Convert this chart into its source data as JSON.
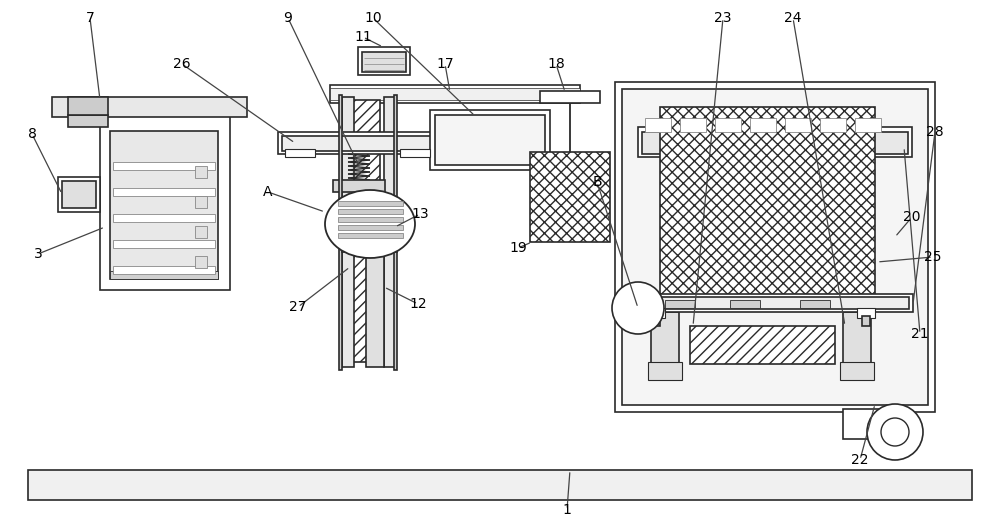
{
  "bg": "#ffffff",
  "lc": "#2a2a2a",
  "lw": 1.2,
  "fig_w": 10.0,
  "fig_h": 5.22,
  "dpi": 100
}
